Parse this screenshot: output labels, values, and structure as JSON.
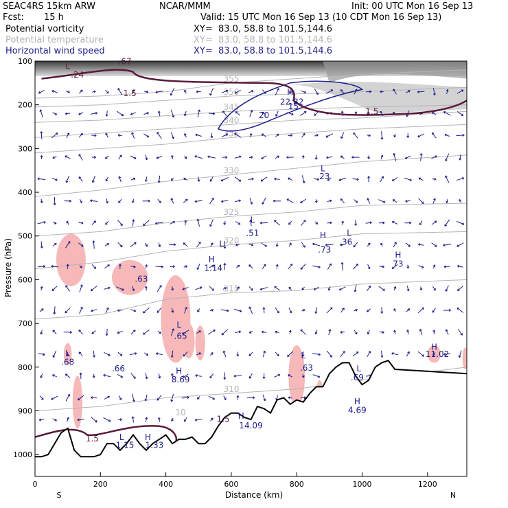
{
  "header": {
    "model": "SEAC4RS 15km ARW",
    "org": "NCAR/MMM",
    "init": "Init: 00 UTC Mon 16 Sep 13",
    "fcst_label": "Fcst:",
    "fcst_value": "15 h",
    "valid": "Valid: 15 UTC Mon 16 Sep 13 (10 CDT Mon 16 Sep 13)",
    "fields": [
      {
        "name": "Potential vorticity",
        "xy": "XY=  83.0, 58.8 to 101.5,144.6",
        "color": "#000000"
      },
      {
        "name": "Potential temperature",
        "xy": "XY=  83.0, 58.8 to 101.5,144.6",
        "color": "#b4b4b4"
      },
      {
        "name": "Horizontal wind speed",
        "xy": "XY=  83.0, 58.8 to 101.5,144.6",
        "color": "#1e1e8c"
      }
    ]
  },
  "chart_data": {
    "type": "contour-cross-section",
    "xlabel": "Distance (km)",
    "ylabel": "Pressure (hPa)",
    "xlim": [
      0,
      1320
    ],
    "ylim": [
      1050,
      100
    ],
    "x_ticks": [
      "0",
      "200",
      "400",
      "600",
      "800",
      "1000",
      "1200"
    ],
    "y_ticks": [
      "100",
      "200",
      "300",
      "400",
      "500",
      "600",
      "700",
      "800",
      "900",
      "1000"
    ],
    "x_tick_values": [
      0,
      200,
      400,
      600,
      800,
      1000,
      1200
    ],
    "y_tick_values": [
      100,
      200,
      300,
      400,
      500,
      600,
      700,
      800,
      900,
      1000
    ],
    "left_end_label": "S",
    "right_end_label": "N",
    "colors": {
      "pv": "#5a1a3c",
      "theta": "#b4b4b4",
      "wind": "#1e1e8c",
      "pv_fill": "#f6b8b8",
      "terrain": "#000000"
    },
    "theta_isentropes": [
      {
        "label": "355",
        "points": [
          [
            0,
            185
          ],
          [
            200,
            180
          ],
          [
            400,
            170
          ],
          [
            600,
            150
          ],
          [
            800,
            140
          ],
          [
            1000,
            130
          ],
          [
            1320,
            120
          ]
        ]
      },
      {
        "label": "350",
        "points": [
          [
            0,
            205
          ],
          [
            200,
            200
          ],
          [
            400,
            190
          ],
          [
            600,
            180
          ],
          [
            800,
            175
          ],
          [
            1000,
            170
          ],
          [
            1320,
            160
          ]
        ]
      },
      {
        "label": "345",
        "points": [
          [
            0,
            240
          ],
          [
            200,
            235
          ],
          [
            400,
            225
          ],
          [
            600,
            215
          ],
          [
            800,
            210
          ],
          [
            1000,
            205
          ],
          [
            1320,
            200
          ]
        ]
      },
      {
        "label": "340",
        "points": [
          [
            0,
            275
          ],
          [
            200,
            265
          ],
          [
            400,
            255
          ],
          [
            600,
            245
          ],
          [
            800,
            235
          ],
          [
            1000,
            230
          ],
          [
            1320,
            215
          ]
        ]
      },
      {
        "label": "335",
        "points": [
          [
            0,
            310
          ],
          [
            200,
            300
          ],
          [
            400,
            290
          ],
          [
            600,
            275
          ],
          [
            800,
            265
          ],
          [
            1000,
            255
          ],
          [
            1320,
            245
          ]
        ]
      },
      {
        "label": "330",
        "points": [
          [
            0,
            410
          ],
          [
            200,
            395
          ],
          [
            400,
            375
          ],
          [
            600,
            360
          ],
          [
            800,
            345
          ],
          [
            1000,
            330
          ],
          [
            1320,
            315
          ]
        ]
      },
      {
        "label": "325",
        "points": [
          [
            0,
            500
          ],
          [
            200,
            490
          ],
          [
            400,
            470
          ],
          [
            600,
            455
          ],
          [
            800,
            445
          ],
          [
            1000,
            430
          ],
          [
            1320,
            425
          ]
        ]
      },
      {
        "label": "320",
        "points": [
          [
            0,
            575
          ],
          [
            200,
            560
          ],
          [
            400,
            535
          ],
          [
            600,
            520
          ],
          [
            800,
            510
          ],
          [
            1000,
            495
          ],
          [
            1320,
            490
          ]
        ]
      },
      {
        "label": "315",
        "points": [
          [
            0,
            690
          ],
          [
            200,
            680
          ],
          [
            400,
            645
          ],
          [
            600,
            630
          ],
          [
            800,
            625
          ],
          [
            1000,
            610
          ],
          [
            1320,
            600
          ]
        ]
      },
      {
        "label": "310",
        "points": [
          [
            0,
            900
          ],
          [
            200,
            890
          ],
          [
            400,
            870
          ],
          [
            600,
            860
          ],
          [
            800,
            850
          ],
          [
            1000,
            830
          ],
          [
            1320,
            800
          ]
        ]
      }
    ],
    "labels": [
      {
        "text": "L",
        "x": 100,
        "p": 118,
        "color": "pv"
      },
      {
        "text": "-.24",
        "x": 125,
        "p": 138,
        "color": "pv"
      },
      {
        "text": ".67",
        "x": 275,
        "p": 107,
        "color": "pv"
      },
      {
        "text": "1.5",
        "x": 290,
        "p": 180,
        "color": "pv"
      },
      {
        "text": "H",
        "x": 780,
        "p": 177,
        "color": "wind"
      },
      {
        "text": "22.82",
        "x": 785,
        "p": 200,
        "color": "wind"
      },
      {
        "text": "15",
        "x": 790,
        "p": 210,
        "color": "wind"
      },
      {
        "text": "20",
        "x": 700,
        "p": 230,
        "color": "wind"
      },
      {
        "text": "1.5",
        "x": 1030,
        "p": 222,
        "color": "pv"
      },
      {
        "text": "L",
        "x": 880,
        "p": 352,
        "color": "wind"
      },
      {
        "text": "23",
        "x": 885,
        "p": 370,
        "color": "wind"
      },
      {
        "text": "L",
        "x": 665,
        "p": 470,
        "color": "wind"
      },
      {
        "text": ".51",
        "x": 665,
        "p": 500,
        "color": "wind"
      },
      {
        "text": "H",
        "x": 880,
        "p": 505,
        "color": "wind"
      },
      {
        "text": ".73",
        "x": 885,
        "p": 538,
        "color": "wind"
      },
      {
        "text": "L",
        "x": 960,
        "p": 500,
        "color": "wind"
      },
      {
        "text": ".36",
        "x": 950,
        "p": 520,
        "color": "wind"
      },
      {
        "text": "H",
        "x": 1110,
        "p": 550,
        "color": "wind"
      },
      {
        "text": "73",
        "x": 1110,
        "p": 570,
        "color": "wind"
      },
      {
        "text": "L",
        "x": 570,
        "p": 525,
        "color": "wind"
      },
      {
        "text": ".63",
        "x": 325,
        "p": 605,
        "color": "wind"
      },
      {
        "text": "H",
        "x": 540,
        "p": 560,
        "color": "wind"
      },
      {
        "text": "1.14",
        "x": 545,
        "p": 580,
        "color": "wind"
      },
      {
        "text": "L",
        "x": 440,
        "p": 710,
        "color": "wind"
      },
      {
        "text": ".65",
        "x": 445,
        "p": 735,
        "color": "wind"
      },
      {
        "text": "L",
        "x": 100,
        "p": 775,
        "color": "wind"
      },
      {
        "text": ".68",
        "x": 100,
        "p": 795,
        "color": "wind"
      },
      {
        "text": ".66",
        "x": 255,
        "p": 810,
        "color": "wind"
      },
      {
        "text": "H",
        "x": 440,
        "p": 815,
        "color": "wind"
      },
      {
        "text": "8.69",
        "x": 445,
        "p": 835,
        "color": "wind"
      },
      {
        "text": "L",
        "x": 820,
        "p": 780,
        "color": "wind"
      },
      {
        "text": ".63",
        "x": 830,
        "p": 808,
        "color": "wind"
      },
      {
        "text": "L",
        "x": 990,
        "p": 810,
        "color": "wind"
      },
      {
        "text": ".69",
        "x": 985,
        "p": 830,
        "color": "wind"
      },
      {
        "text": "H",
        "x": 1220,
        "p": 760,
        "color": "wind"
      },
      {
        "text": "11.02",
        "x": 1230,
        "p": 777,
        "color": "wind"
      },
      {
        "text": "H",
        "x": 985,
        "p": 885,
        "color": "wind"
      },
      {
        "text": "4.69",
        "x": 985,
        "p": 905,
        "color": "wind"
      },
      {
        "text": "1.5",
        "x": 575,
        "p": 925,
        "color": "pv"
      },
      {
        "text": "H",
        "x": 630,
        "p": 918,
        "color": "wind"
      },
      {
        "text": "14.09",
        "x": 660,
        "p": 940,
        "color": "wind"
      },
      {
        "text": "1.5",
        "x": 175,
        "p": 970,
        "color": "pv"
      },
      {
        "text": "L",
        "x": 265,
        "p": 967,
        "color": "wind"
      },
      {
        "text": "1.15",
        "x": 275,
        "p": 985,
        "color": "wind"
      },
      {
        "text": "H",
        "x": 345,
        "p": 967,
        "color": "wind"
      },
      {
        "text": "1.33",
        "x": 365,
        "p": 985,
        "color": "wind"
      },
      {
        "text": "10",
        "x": 445,
        "p": 910,
        "color": "theta"
      }
    ],
    "terrain_p": [
      1005,
      1005,
      1000,
      975,
      950,
      940,
      990,
      1005,
      1005,
      1005,
      1000,
      975,
      975,
      990,
      975,
      955,
      975,
      990,
      975,
      965,
      955,
      975,
      965,
      965,
      960,
      975,
      975,
      960,
      935,
      915,
      905,
      905,
      915,
      920,
      890,
      895,
      905,
      875,
      870,
      885,
      875,
      880,
      860,
      845,
      845,
      815,
      800,
      790,
      790,
      820,
      840,
      830,
      800,
      790,
      785,
      805,
      815
    ],
    "terrain_x": [
      0,
      20,
      40,
      60,
      80,
      100,
      120,
      140,
      160,
      180,
      200,
      220,
      240,
      260,
      280,
      300,
      320,
      340,
      360,
      380,
      400,
      420,
      440,
      460,
      480,
      500,
      520,
      540,
      560,
      580,
      600,
      620,
      640,
      660,
      680,
      700,
      720,
      740,
      760,
      780,
      800,
      820,
      840,
      860,
      880,
      900,
      920,
      940,
      960,
      980,
      1000,
      1020,
      1040,
      1060,
      1080,
      1100,
      1320
    ]
  }
}
